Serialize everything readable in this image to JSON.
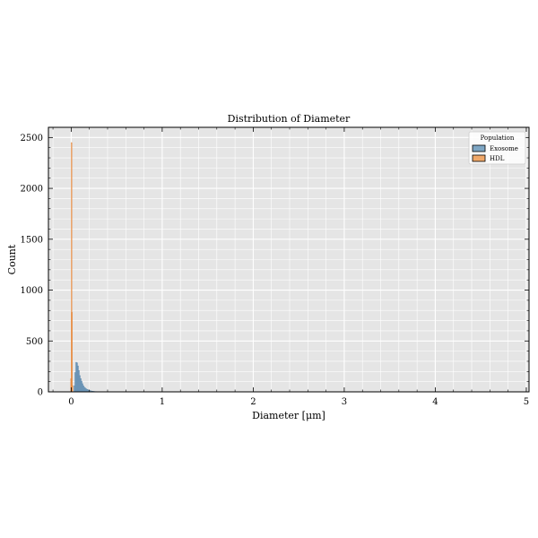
{
  "chart_data": {
    "type": "bar",
    "title": "Distribution of Diameter",
    "xlabel": "Diameter [μm]",
    "ylabel": "Count",
    "xlim": [
      -0.25,
      5.03
    ],
    "ylim": [
      0,
      2600
    ],
    "xticks": [
      0,
      1,
      2,
      3,
      4,
      5
    ],
    "xtick_labels": [
      "0",
      "1",
      "2",
      "3",
      "4",
      "5"
    ],
    "yticks": [
      0,
      500,
      1000,
      1500,
      2000,
      2500
    ],
    "ytick_labels": [
      "0",
      "500",
      "1000",
      "1500",
      "2000",
      "2500"
    ],
    "grid": true,
    "legend": {
      "title": "Population",
      "placement": "top-right",
      "entries": [
        {
          "label": "Exosome",
          "color": "#7ea6c4"
        },
        {
          "label": "HDL",
          "color": "#f0a869"
        }
      ]
    },
    "bin_width": 0.01,
    "series": [
      {
        "name": "Exosome",
        "color": "#7ea6c4",
        "edge": "#4f7ea5",
        "bins": [
          [
            0.03,
            60
          ],
          [
            0.04,
            190
          ],
          [
            0.05,
            290
          ],
          [
            0.06,
            285
          ],
          [
            0.07,
            255
          ],
          [
            0.08,
            210
          ],
          [
            0.09,
            160
          ],
          [
            0.1,
            130
          ],
          [
            0.11,
            105
          ],
          [
            0.12,
            80
          ],
          [
            0.13,
            60
          ],
          [
            0.14,
            45
          ],
          [
            0.15,
            38
          ],
          [
            0.16,
            30
          ],
          [
            0.17,
            25
          ],
          [
            0.18,
            20
          ],
          [
            0.19,
            16
          ],
          [
            0.2,
            13
          ],
          [
            0.21,
            10
          ],
          [
            0.22,
            8
          ],
          [
            0.23,
            6
          ],
          [
            0.24,
            5
          ],
          [
            0.25,
            4
          ],
          [
            0.26,
            3
          ],
          [
            0.27,
            3
          ],
          [
            0.28,
            2
          ],
          [
            0.29,
            2
          ],
          [
            0.3,
            2
          ],
          [
            0.32,
            1
          ],
          [
            0.34,
            1
          ],
          [
            0.36,
            1
          ],
          [
            0.38,
            1
          ],
          [
            0.4,
            1
          ]
        ]
      },
      {
        "name": "HDL",
        "color": "#f0a869",
        "edge": "#e07b2a",
        "bins": [
          [
            -0.005,
            130
          ],
          [
            0.0,
            2450
          ],
          [
            0.005,
            780
          ],
          [
            0.01,
            60
          ]
        ]
      }
    ]
  }
}
